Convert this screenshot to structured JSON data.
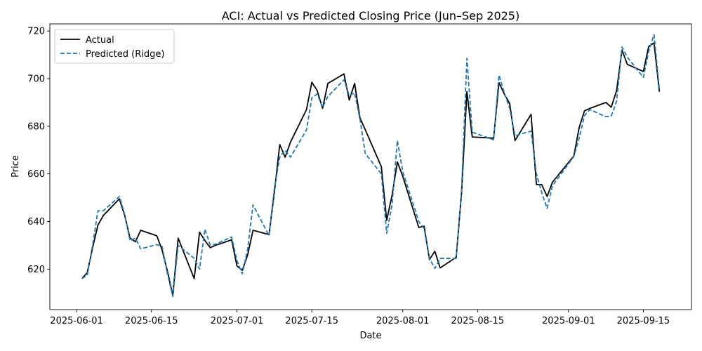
{
  "chart_data": {
    "type": "line",
    "title": "ACI: Actual vs Predicted Closing Price (Jun–Sep 2025)",
    "xlabel": "Date",
    "ylabel": "Price",
    "xlim": [
      "2025-05-27",
      "2025-09-24"
    ],
    "ylim": [
      603,
      723
    ],
    "x_ticks": [
      "2025-06-01",
      "2025-06-15",
      "2025-07-01",
      "2025-07-15",
      "2025-08-01",
      "2025-08-15",
      "2025-09-01",
      "2025-09-15"
    ],
    "y_ticks": [
      620,
      640,
      660,
      680,
      700,
      720
    ],
    "grid": false,
    "legend_position": "top-left",
    "series": [
      {
        "name": "Actual",
        "color": "#000000",
        "style": "solid",
        "points": [
          [
            "2025-06-02",
            616.0
          ],
          [
            "2025-06-03",
            618.5
          ],
          [
            "2025-06-04",
            629.0
          ],
          [
            "2025-06-05",
            638.5
          ],
          [
            "2025-06-06",
            642.5
          ],
          [
            "2025-06-09",
            649.5
          ],
          [
            "2025-06-10",
            642.5
          ],
          [
            "2025-06-11",
            633.0
          ],
          [
            "2025-06-12",
            631.5
          ],
          [
            "2025-06-13",
            636.3
          ],
          [
            "2025-06-16",
            634.0
          ],
          [
            "2025-06-17",
            628.0
          ],
          [
            "2025-06-18",
            619.0
          ],
          [
            "2025-06-19",
            609.0
          ],
          [
            "2025-06-20",
            633.0
          ],
          [
            "2025-06-23",
            616.0
          ],
          [
            "2025-06-24",
            635.5
          ],
          [
            "2025-06-25",
            632.0
          ],
          [
            "2025-06-26",
            629.0
          ],
          [
            "2025-06-27",
            630.0
          ],
          [
            "2025-06-30",
            632.3
          ],
          [
            "2025-07-01",
            621.3
          ],
          [
            "2025-07-02",
            619.5
          ],
          [
            "2025-07-03",
            626.0
          ],
          [
            "2025-07-04",
            636.3
          ],
          [
            "2025-07-07",
            634.5
          ],
          [
            "2025-07-08",
            652.5
          ],
          [
            "2025-07-09",
            672.3
          ],
          [
            "2025-07-10",
            667.0
          ],
          [
            "2025-07-11",
            673.3
          ],
          [
            "2025-07-14",
            687.0
          ],
          [
            "2025-07-15",
            698.5
          ],
          [
            "2025-07-16",
            695.0
          ],
          [
            "2025-07-17",
            687.5
          ],
          [
            "2025-07-18",
            698.0
          ],
          [
            "2025-07-21",
            702.0
          ],
          [
            "2025-07-22",
            691.0
          ],
          [
            "2025-07-23",
            698.0
          ],
          [
            "2025-07-24",
            683.5
          ],
          [
            "2025-07-25",
            678.5
          ],
          [
            "2025-07-28",
            663.0
          ],
          [
            "2025-07-29",
            640.5
          ],
          [
            "2025-07-30",
            651.0
          ],
          [
            "2025-07-31",
            665.0
          ],
          [
            "2025-08-01",
            659.0
          ],
          [
            "2025-08-04",
            637.5
          ],
          [
            "2025-08-05",
            638.0
          ],
          [
            "2025-08-06",
            624.0
          ],
          [
            "2025-08-07",
            627.5
          ],
          [
            "2025-08-08",
            620.5
          ],
          [
            "2025-08-11",
            625.0
          ],
          [
            "2025-08-12",
            652.0
          ],
          [
            "2025-08-13",
            694.5
          ],
          [
            "2025-08-14",
            675.5
          ],
          [
            "2025-08-18",
            675.0
          ],
          [
            "2025-08-19",
            698.3
          ],
          [
            "2025-08-20",
            693.5
          ],
          [
            "2025-08-21",
            689.5
          ],
          [
            "2025-08-22",
            674.0
          ],
          [
            "2025-08-25",
            685.0
          ],
          [
            "2025-08-26",
            655.5
          ],
          [
            "2025-08-27",
            655.5
          ],
          [
            "2025-08-28",
            650.5
          ],
          [
            "2025-08-29",
            656.5
          ],
          [
            "2025-09-02",
            667.5
          ],
          [
            "2025-09-03",
            679.5
          ],
          [
            "2025-09-04",
            686.5
          ],
          [
            "2025-09-05",
            687.5
          ],
          [
            "2025-09-08",
            690.0
          ],
          [
            "2025-09-09",
            688.0
          ],
          [
            "2025-09-10",
            695.0
          ],
          [
            "2025-09-11",
            712.0
          ],
          [
            "2025-09-12",
            706.0
          ],
          [
            "2025-09-15",
            703.0
          ],
          [
            "2025-09-16",
            713.5
          ],
          [
            "2025-09-17",
            715.0
          ],
          [
            "2025-09-18",
            694.5
          ]
        ]
      },
      {
        "name": "Predicted (Ridge)",
        "color": "#1f77b4",
        "style": "dashed",
        "points": [
          [
            "2025-06-02",
            616.0
          ],
          [
            "2025-06-03",
            617.5
          ],
          [
            "2025-06-04",
            630.0
          ],
          [
            "2025-06-05",
            644.5
          ],
          [
            "2025-06-06",
            644.5
          ],
          [
            "2025-06-09",
            650.5
          ],
          [
            "2025-06-10",
            643.0
          ],
          [
            "2025-06-11",
            632.0
          ],
          [
            "2025-06-12",
            633.0
          ],
          [
            "2025-06-13",
            628.5
          ],
          [
            "2025-06-16",
            630.3
          ],
          [
            "2025-06-17",
            629.5
          ],
          [
            "2025-06-18",
            618.0
          ],
          [
            "2025-06-19",
            608.5
          ],
          [
            "2025-06-20",
            630.0
          ],
          [
            "2025-06-23",
            624.5
          ],
          [
            "2025-06-24",
            620.0
          ],
          [
            "2025-06-25",
            636.8
          ],
          [
            "2025-06-26",
            630.0
          ],
          [
            "2025-06-27",
            630.5
          ],
          [
            "2025-06-30",
            633.5
          ],
          [
            "2025-07-01",
            623.5
          ],
          [
            "2025-07-02",
            618.0
          ],
          [
            "2025-07-03",
            628.5
          ],
          [
            "2025-07-04",
            647.0
          ],
          [
            "2025-07-07",
            634.0
          ],
          [
            "2025-07-08",
            654.0
          ],
          [
            "2025-07-09",
            667.0
          ],
          [
            "2025-07-10",
            670.0
          ],
          [
            "2025-07-11",
            667.0
          ],
          [
            "2025-07-14",
            678.5
          ],
          [
            "2025-07-15",
            692.0
          ],
          [
            "2025-07-16",
            693.5
          ],
          [
            "2025-07-17",
            688.0
          ],
          [
            "2025-07-18",
            692.5
          ],
          [
            "2025-07-21",
            699.5
          ],
          [
            "2025-07-22",
            693.0
          ],
          [
            "2025-07-23",
            694.0
          ],
          [
            "2025-07-24",
            683.0
          ],
          [
            "2025-07-25",
            668.5
          ],
          [
            "2025-07-28",
            660.0
          ],
          [
            "2025-07-29",
            635.0
          ],
          [
            "2025-07-30",
            647.0
          ],
          [
            "2025-07-31",
            674.0
          ],
          [
            "2025-08-01",
            661.0
          ],
          [
            "2025-08-04",
            640.0
          ],
          [
            "2025-08-05",
            637.0
          ],
          [
            "2025-08-06",
            624.5
          ],
          [
            "2025-08-07",
            620.3
          ],
          [
            "2025-08-08",
            624.5
          ],
          [
            "2025-08-11",
            624.5
          ],
          [
            "2025-08-12",
            653.0
          ],
          [
            "2025-08-13",
            708.5
          ],
          [
            "2025-08-14",
            677.5
          ],
          [
            "2025-08-18",
            674.3
          ],
          [
            "2025-08-19",
            701.5
          ],
          [
            "2025-08-20",
            694.0
          ],
          [
            "2025-08-21",
            687.5
          ],
          [
            "2025-08-22",
            676.0
          ],
          [
            "2025-08-25",
            678.0
          ],
          [
            "2025-08-26",
            660.0
          ],
          [
            "2025-08-27",
            652.0
          ],
          [
            "2025-08-28",
            645.5
          ],
          [
            "2025-08-29",
            655.0
          ],
          [
            "2025-09-02",
            667.3
          ],
          [
            "2025-09-03",
            675.0
          ],
          [
            "2025-09-04",
            684.5
          ],
          [
            "2025-09-05",
            687.0
          ],
          [
            "2025-09-08",
            684.0
          ],
          [
            "2025-09-09",
            684.3
          ],
          [
            "2025-09-10",
            690.5
          ],
          [
            "2025-09-11",
            713.3
          ],
          [
            "2025-09-12",
            709.0
          ],
          [
            "2025-09-15",
            700.5
          ],
          [
            "2025-09-16",
            711.5
          ],
          [
            "2025-09-17",
            718.5
          ],
          [
            "2025-09-18",
            695.5
          ]
        ]
      }
    ]
  }
}
